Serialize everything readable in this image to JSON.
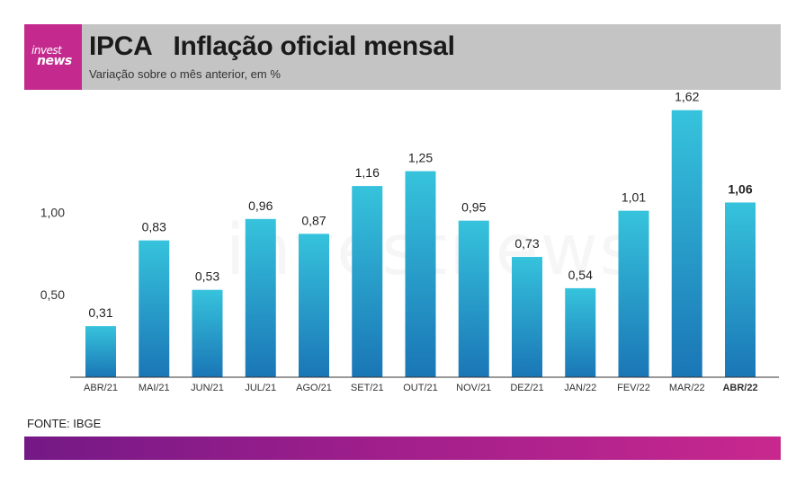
{
  "header": {
    "logo_line1": "invest",
    "logo_line2": "news",
    "title": "IPCA   Inflação oficial mensal",
    "subtitle": "Variação sobre o mês anterior, em %"
  },
  "watermark": "investnews",
  "source": "FONTE: IBGE",
  "colors": {
    "bar_top": "#36c3dc",
    "bar_bottom": "#1a76b6",
    "logo_bg": "#c42a8e",
    "footer_start": "#741986",
    "footer_end": "#c8288e"
  },
  "chart_data": {
    "type": "bar",
    "categories": [
      "ABR/21",
      "MAI/21",
      "JUN/21",
      "JUL/21",
      "AGO/21",
      "SET/21",
      "OUT/21",
      "NOV/21",
      "DEZ/21",
      "JAN/22",
      "FEV/22",
      "MAR/22",
      "ABR/22"
    ],
    "values": [
      0.31,
      0.83,
      0.53,
      0.96,
      0.87,
      1.16,
      1.25,
      0.95,
      0.73,
      0.54,
      1.01,
      1.62,
      1.06
    ],
    "value_labels": [
      "0,31",
      "0,83",
      "0,53",
      "0,96",
      "0,87",
      "1,16",
      "1,25",
      "0,95",
      "0,73",
      "0,54",
      "1,01",
      "1,62",
      "1,06"
    ],
    "y_ticks": [
      0.5,
      1.0
    ],
    "y_tick_labels": [
      "0,50",
      "1,00"
    ],
    "ylim": [
      0,
      1.7
    ],
    "highlight_index": 12,
    "title": "",
    "xlabel": "",
    "ylabel": ""
  }
}
